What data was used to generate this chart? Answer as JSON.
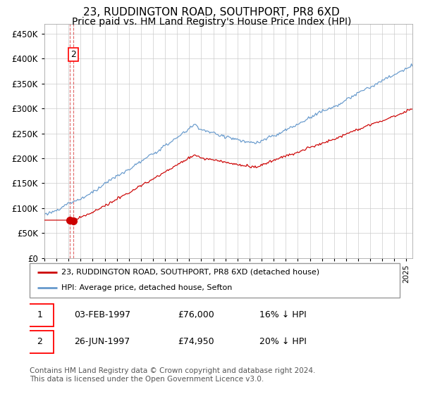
{
  "title": "23, RUDDINGTON ROAD, SOUTHPORT, PR8 6XD",
  "subtitle": "Price paid vs. HM Land Registry's House Price Index (HPI)",
  "red_label": "23, RUDDINGTON ROAD, SOUTHPORT, PR8 6XD (detached house)",
  "blue_label": "HPI: Average price, detached house, Sefton",
  "transaction1_date": "03-FEB-1997",
  "transaction1_price": "£76,000",
  "transaction1_hpi": "16% ↓ HPI",
  "transaction2_date": "26-JUN-1997",
  "transaction2_price": "£74,950",
  "transaction2_hpi": "20% ↓ HPI",
  "footer": "Contains HM Land Registry data © Crown copyright and database right 2024.\nThis data is licensed under the Open Government Licence v3.0.",
  "ylim": [
    0,
    470000
  ],
  "yticks": [
    0,
    50000,
    100000,
    150000,
    200000,
    250000,
    300000,
    350000,
    400000,
    450000
  ],
  "year_start": 1995,
  "year_end": 2025,
  "red_color": "#cc0000",
  "blue_color": "#6699cc",
  "background_color": "#ffffff",
  "grid_color": "#cccccc",
  "title_fontsize": 11,
  "subtitle_fontsize": 10,
  "footer_fontsize": 7.5
}
